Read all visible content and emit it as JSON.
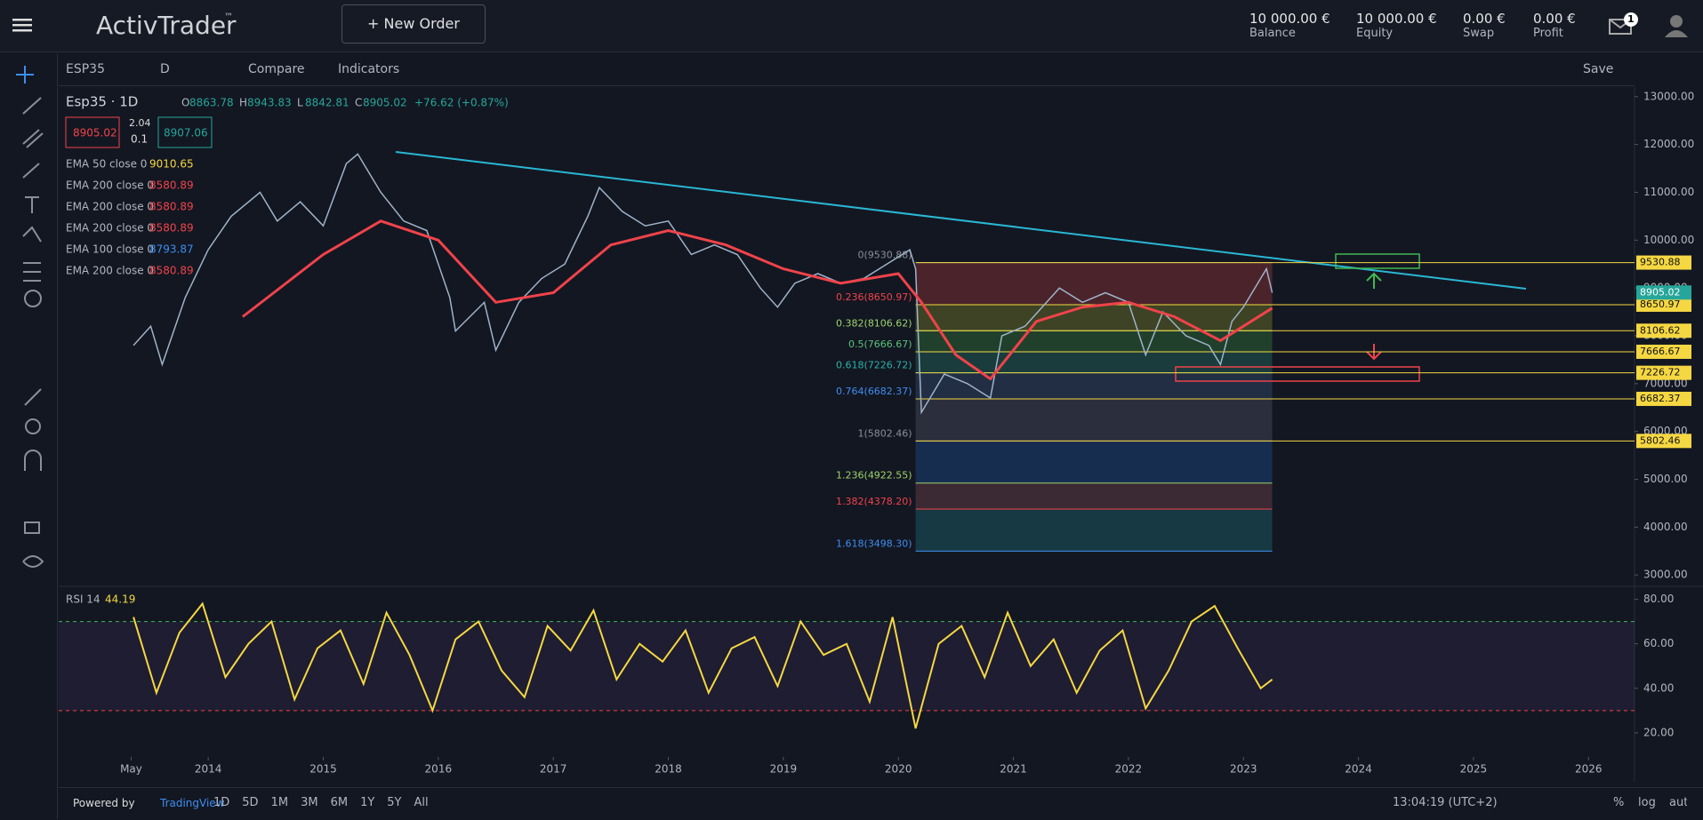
{
  "header": {
    "logo": "ActivTrader",
    "logo_mark": "™",
    "new_order": "New Order",
    "notifications": "1",
    "stats": [
      {
        "value": "10 000.00 €",
        "label": "Balance"
      },
      {
        "value": "10 000.00 €",
        "label": "Equity"
      },
      {
        "value": "0.00 €",
        "label": "Swap"
      },
      {
        "value": "0.00 €",
        "label": "Profit"
      }
    ]
  },
  "toolbar": {
    "symbol": "ESP35",
    "interval": "D",
    "compare": "Compare",
    "indicators": "Indicators",
    "save": "Save"
  },
  "chart_data": {
    "type": "line",
    "title": "Esp35 · 1D",
    "ohlc": [
      {
        "label": "O",
        "value": "8863.78"
      },
      {
        "label": "H",
        "value": "8943.83"
      },
      {
        "label": "L",
        "value": "8842.81"
      },
      {
        "label": "C",
        "value": "8905.02"
      }
    ],
    "change": "+76.62 (+0.87%)",
    "bid": "8905.02",
    "spread": "2.04",
    "lot": "0.1",
    "ask": "8907.06",
    "indicators": [
      {
        "name": "EMA 50 close 0",
        "value": "9010.65",
        "color": "#f5d742"
      },
      {
        "name": "EMA 200 close 0",
        "value": "8580.89",
        "color": "#f0434a"
      },
      {
        "name": "EMA 200 close 0",
        "value": "8580.89",
        "color": "#f0434a"
      },
      {
        "name": "EMA 200 close 0",
        "value": "8580.89",
        "color": "#f0434a"
      },
      {
        "name": "EMA 100 close 0",
        "value": "8793.87",
        "color": "#3d8ef0"
      },
      {
        "name": "EMA 200 close 0",
        "value": "8580.89",
        "color": "#f0434a"
      }
    ],
    "xlim": [
      2012.7,
      2026.4
    ],
    "xticks": [
      {
        "value": 2013.33,
        "label": "May"
      },
      2014,
      2015,
      2016,
      2017,
      2018,
      2019,
      2020,
      2021,
      2022,
      2023,
      2024,
      2025,
      2026
    ],
    "ylim": [
      2800,
      13200
    ],
    "yticks": [
      {
        "value": 3000,
        "label": "3000.00"
      },
      {
        "value": 4000,
        "label": "4000.00"
      },
      {
        "value": 5000,
        "label": "5000.00"
      },
      {
        "value": 6000,
        "label": "6000.00"
      },
      {
        "value": 7000,
        "label": "7000.00"
      },
      {
        "value": 8000,
        "label": "8000.00"
      },
      {
        "value": 9000,
        "label": "9000.00"
      },
      {
        "value": 10000,
        "label": "10000.00"
      },
      {
        "value": 11000,
        "label": "11000.00"
      },
      {
        "value": 12000,
        "label": "12000.00"
      },
      {
        "value": 13000,
        "label": "13000.00"
      }
    ],
    "series": [
      {
        "name": "Esp35",
        "color": "#9fb3c8",
        "x": [
          2013.35,
          2013.5,
          2013.6,
          2013.8,
          2014.0,
          2014.2,
          2014.45,
          2014.6,
          2014.8,
          2015.0,
          2015.2,
          2015.3,
          2015.5,
          2015.7,
          2015.9,
          2016.1,
          2016.15,
          2016.4,
          2016.5,
          2016.7,
          2016.9,
          2017.1,
          2017.3,
          2017.4,
          2017.6,
          2017.8,
          2018.0,
          2018.2,
          2018.4,
          2018.6,
          2018.8,
          2018.95,
          2019.1,
          2019.3,
          2019.5,
          2019.7,
          2019.9,
          2020.1,
          2020.15,
          2020.2,
          2020.4,
          2020.6,
          2020.8,
          2020.9,
          2021.1,
          2021.4,
          2021.6,
          2021.8,
          2022.0,
          2022.15,
          2022.3,
          2022.5,
          2022.7,
          2022.8,
          2022.9,
          2023.0,
          2023.2,
          2023.25
        ],
        "values": [
          7800,
          8200,
          7400,
          8800,
          9800,
          10500,
          11000,
          10400,
          10800,
          10300,
          11600,
          11800,
          11000,
          10400,
          10200,
          8800,
          8100,
          8700,
          7700,
          8700,
          9200,
          9500,
          10500,
          11100,
          10600,
          10300,
          10400,
          9700,
          9900,
          9700,
          9000,
          8600,
          9100,
          9300,
          9100,
          9200,
          9500,
          9800,
          9400,
          6400,
          7200,
          7000,
          6700,
          8000,
          8200,
          9000,
          8700,
          8900,
          8700,
          7600,
          8500,
          8000,
          7800,
          7400,
          8300,
          8600,
          9400,
          8900
        ]
      },
      {
        "name": "EMA 200",
        "color": "#f0434a",
        "x": [
          2014.3,
          2015,
          2015.5,
          2016,
          2016.5,
          2017,
          2017.5,
          2018,
          2018.5,
          2019,
          2019.5,
          2020,
          2020.2,
          2020.5,
          2020.8,
          2021.2,
          2021.6,
          2022,
          2022.4,
          2022.8,
          2023.25
        ],
        "values": [
          8400,
          9700,
          10400,
          10000,
          8700,
          8900,
          9900,
          10200,
          9900,
          9400,
          9100,
          9300,
          8700,
          7600,
          7100,
          8300,
          8600,
          8700,
          8400,
          7900,
          8580
        ]
      }
    ],
    "fib": [
      {
        "label": "0(9530.88)",
        "price": 9530.88,
        "color": "#8a8f98",
        "fill": "rgba(180,60,60,0.35)"
      },
      {
        "label": "0.236(8650.97)",
        "price": 8650.97,
        "color": "#f0434a",
        "fill": "rgba(140,150,40,0.35)"
      },
      {
        "label": "0.382(8106.62)",
        "price": 8106.62,
        "color": "#9ed36a",
        "fill": "rgba(60,140,60,0.35)"
      },
      {
        "label": "0.5(7666.67)",
        "price": 7666.67,
        "color": "#59c47a",
        "fill": "rgba(40,130,110,0.35)"
      },
      {
        "label": "0.618(7226.72)",
        "price": 7226.72,
        "color": "#2ab1a6",
        "fill": "rgba(60,90,130,0.35)"
      },
      {
        "label": "0.764(6682.37)",
        "price": 6682.37,
        "color": "#3d8ef0",
        "fill": "rgba(90,90,110,0.35)"
      },
      {
        "label": "1(5802.46)",
        "price": 5802.46,
        "color": "#8a8f98",
        "fill": "rgba(30,80,150,0.4)"
      },
      {
        "label": "1.236(4922.55)",
        "price": 4922.55,
        "color": "#9ed36a",
        "fill": "rgba(120,70,80,0.4)"
      },
      {
        "label": "1.382(4378.20)",
        "price": 4378.2,
        "color": "#f0434a",
        "fill": "rgba(30,110,120,0.4)"
      },
      {
        "label": "1.618(3498.30)",
        "price": 3498.3,
        "color": "#3d8ef0",
        "fill": "rgba(120,90,50,0.45)"
      }
    ],
    "axis_levels": [
      9530.88,
      8650.97,
      8106.62,
      7666.67,
      7226.72,
      6682.37,
      5802.46
    ],
    "rsi": {
      "label": "RSI 14",
      "value": "44.19",
      "color": "#f5d742",
      "upper": 70,
      "lower": 30,
      "ylim": [
        10,
        85
      ],
      "yticks": [
        {
          "value": 20,
          "label": "20.00"
        },
        {
          "value": 40,
          "label": "40.00"
        },
        {
          "value": 60,
          "label": "60.00"
        },
        {
          "value": 80,
          "label": "80.00"
        }
      ],
      "x": [
        2013.35,
        2013.55,
        2013.75,
        2013.95,
        2014.15,
        2014.35,
        2014.55,
        2014.75,
        2014.95,
        2015.15,
        2015.35,
        2015.55,
        2015.75,
        2015.95,
        2016.15,
        2016.35,
        2016.55,
        2016.75,
        2016.95,
        2017.15,
        2017.35,
        2017.55,
        2017.75,
        2017.95,
        2018.15,
        2018.35,
        2018.55,
        2018.75,
        2018.95,
        2019.15,
        2019.35,
        2019.55,
        2019.75,
        2019.95,
        2020.15,
        2020.35,
        2020.55,
        2020.75,
        2020.95,
        2021.15,
        2021.35,
        2021.55,
        2021.75,
        2021.95,
        2022.15,
        2022.35,
        2022.55,
        2022.75,
        2022.95,
        2023.15,
        2023.25
      ],
      "values": [
        72,
        38,
        65,
        78,
        45,
        60,
        70,
        35,
        58,
        66,
        42,
        74,
        55,
        30,
        62,
        70,
        48,
        36,
        68,
        57,
        75,
        44,
        60,
        52,
        66,
        38,
        58,
        63,
        41,
        70,
        55,
        60,
        34,
        72,
        22,
        60,
        68,
        45,
        74,
        50,
        62,
        38,
        57,
        66,
        31,
        48,
        70,
        77,
        58,
        40,
        44
      ]
    }
  },
  "footer": {
    "powered": "Powered by",
    "brand": "TradingView",
    "ranges": [
      "1D",
      "5D",
      "1M",
      "3M",
      "6M",
      "1Y",
      "5Y",
      "All"
    ],
    "time": "13:04:19 (UTC+2)",
    "percent": "%",
    "log": "log",
    "auto": "auto"
  }
}
